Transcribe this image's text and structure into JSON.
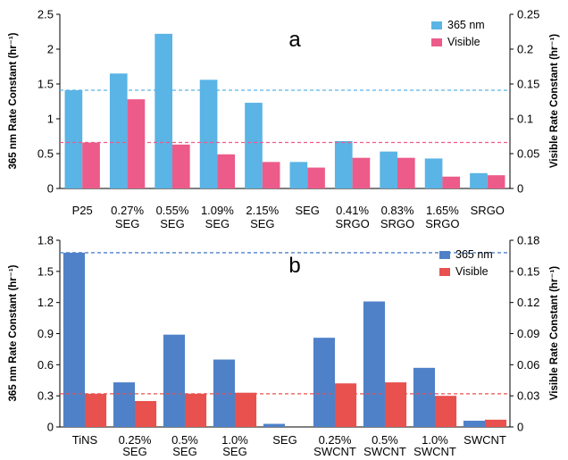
{
  "chart_data": [
    {
      "type": "bar",
      "panel_label": "a",
      "categories": [
        [
          "P25"
        ],
        [
          "0.27%",
          "SEG"
        ],
        [
          "0.55%",
          "SEG"
        ],
        [
          "1.09%",
          "SEG"
        ],
        [
          "2.15%",
          "SEG"
        ],
        [
          "SEG"
        ],
        [
          "0.41%",
          "SRGO"
        ],
        [
          "0.83%",
          "SRGO"
        ],
        [
          "1.65%",
          "SRGO"
        ],
        [
          "SRGO"
        ]
      ],
      "series": [
        {
          "name": "365 nm",
          "axis": "left",
          "color": "#5AB4E5",
          "values": [
            1.41,
            1.65,
            2.22,
            1.56,
            1.23,
            0.38,
            0.68,
            0.53,
            0.43,
            0.22
          ]
        },
        {
          "name": "Visible",
          "axis": "right",
          "color": "#EC5B8A",
          "values": [
            0.066,
            0.128,
            0.063,
            0.049,
            0.038,
            0.03,
            0.044,
            0.044,
            0.017,
            0.019
          ]
        }
      ],
      "ylabel_left": "365 nm Rate Constant  (hr⁻¹)",
      "ylabel_right": "Visible  Rate Constant  (hr⁻¹)",
      "ylim_left": [
        0,
        2.5
      ],
      "ylim_right": [
        0,
        0.25
      ],
      "yticks_left": [
        "0",
        "0.5",
        "1",
        "1.5",
        "2",
        "2.5"
      ],
      "yticks_right": [
        "0",
        "0.05",
        "0.1",
        "0.15",
        "0.2",
        "0.25"
      ],
      "reference_lines": [
        {
          "axis": "left",
          "value": 1.41,
          "color": "#5AB4E5"
        },
        {
          "axis": "right",
          "value": 0.066,
          "color": "#EC5B8A"
        }
      ],
      "legend_position": "top-right"
    },
    {
      "type": "bar",
      "panel_label": "b",
      "categories": [
        [
          "TiNS"
        ],
        [
          "0.25%",
          "SEG"
        ],
        [
          "0.5%",
          "SEG"
        ],
        [
          "1.0%",
          "SEG"
        ],
        [
          "SEG"
        ],
        [
          "0.25%",
          "SWCNT"
        ],
        [
          "0.5%",
          "SWCNT"
        ],
        [
          "1.0%",
          "SWCNT"
        ],
        [
          "SWCNT"
        ]
      ],
      "series": [
        {
          "name": "365 nm",
          "axis": "left",
          "color": "#4F81C9",
          "values": [
            1.68,
            0.43,
            0.89,
            0.65,
            0.03,
            0.86,
            1.21,
            0.57,
            0.06
          ]
        },
        {
          "name": "Visible",
          "axis": "right",
          "color": "#E8514E",
          "values": [
            0.032,
            0.025,
            0.032,
            0.033,
            0.0,
            0.042,
            0.043,
            0.03,
            0.007
          ]
        }
      ],
      "ylabel_left": "365 nm Rate Constant  (hr⁻¹)",
      "ylabel_right": "Visible Rate Constant  (hr⁻¹)",
      "ylim_left": [
        0,
        1.8
      ],
      "ylim_right": [
        0,
        0.18
      ],
      "yticks_left": [
        "0",
        "0.3",
        "0.6",
        "0.9",
        "1.2",
        "1.5",
        "1.8"
      ],
      "yticks_right": [
        "0",
        "0.03",
        "0.06",
        "0.09",
        "0.12",
        "0.15",
        "0.18"
      ],
      "reference_lines": [
        {
          "axis": "left",
          "value": 1.68,
          "color": "#4F81C9"
        },
        {
          "axis": "right",
          "value": 0.032,
          "color": "#E8514E"
        }
      ],
      "legend_position": "top-right"
    }
  ]
}
